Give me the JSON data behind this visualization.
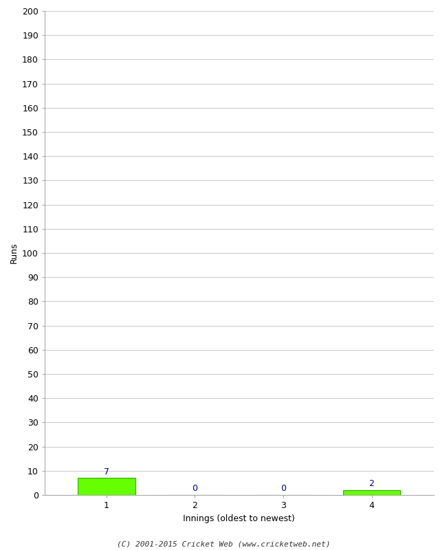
{
  "categories": [
    1,
    2,
    3,
    4
  ],
  "values": [
    7,
    0,
    0,
    2
  ],
  "bar_color": "#66ff00",
  "bar_edge_color": "#33aa00",
  "ylabel": "Runs",
  "xlabel": "Innings (oldest to newest)",
  "ylim": [
    0,
    200
  ],
  "yticks": [
    0,
    10,
    20,
    30,
    40,
    50,
    60,
    70,
    80,
    90,
    100,
    110,
    120,
    130,
    140,
    150,
    160,
    170,
    180,
    190,
    200
  ],
  "xticks": [
    1,
    2,
    3,
    4
  ],
  "value_label_color": "#000099",
  "footer": "(C) 2001-2015 Cricket Web (www.cricketweb.net)",
  "bar_width": 0.65,
  "background_color": "#ffffff",
  "grid_color": "#cccccc",
  "spine_color": "#aaaaaa",
  "tick_color": "#aaaaaa",
  "label_fontsize": 9,
  "tick_fontsize": 9,
  "value_fontsize": 9,
  "footer_fontsize": 8
}
